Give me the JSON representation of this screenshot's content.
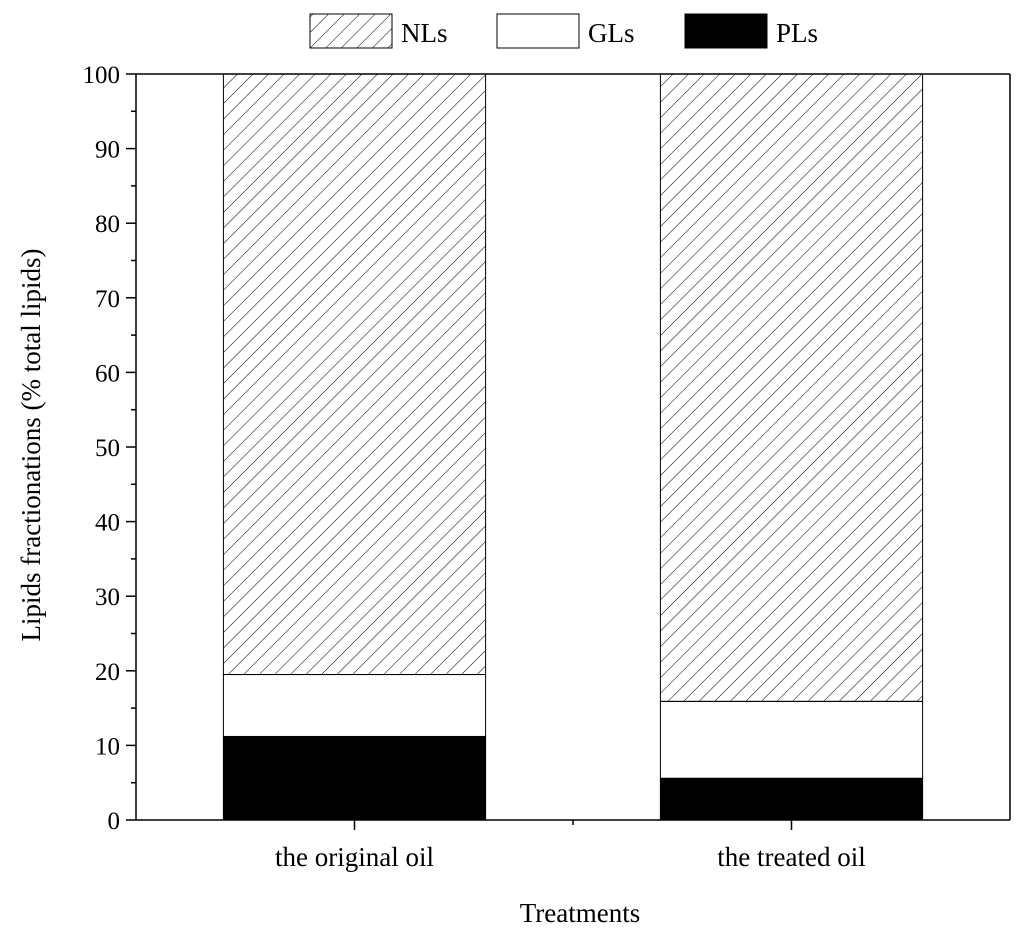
{
  "chart_data": {
    "type": "bar",
    "stacked": true,
    "categories": [
      "the original oil",
      "the treated oil"
    ],
    "series": [
      {
        "name": "PLs",
        "values": [
          11.2,
          5.6
        ],
        "fill": "solid-black"
      },
      {
        "name": "GLs",
        "values": [
          8.3,
          10.3
        ],
        "fill": "white"
      },
      {
        "name": "NLs",
        "values": [
          80.5,
          84.1
        ],
        "fill": "diagonal-hatch"
      }
    ],
    "legend_order": [
      "NLs",
      "GLs",
      "PLs"
    ],
    "legend_placement": "top-center",
    "xlabel": "Treatments",
    "ylabel": "Lipids fractionations (% total lipids)",
    "ylim": [
      0,
      100
    ],
    "yticks": [
      0,
      10,
      20,
      30,
      40,
      50,
      60,
      70,
      80,
      90,
      100
    ],
    "grid": false
  },
  "colors": {
    "ink": "#000000",
    "paper": "#ffffff"
  }
}
